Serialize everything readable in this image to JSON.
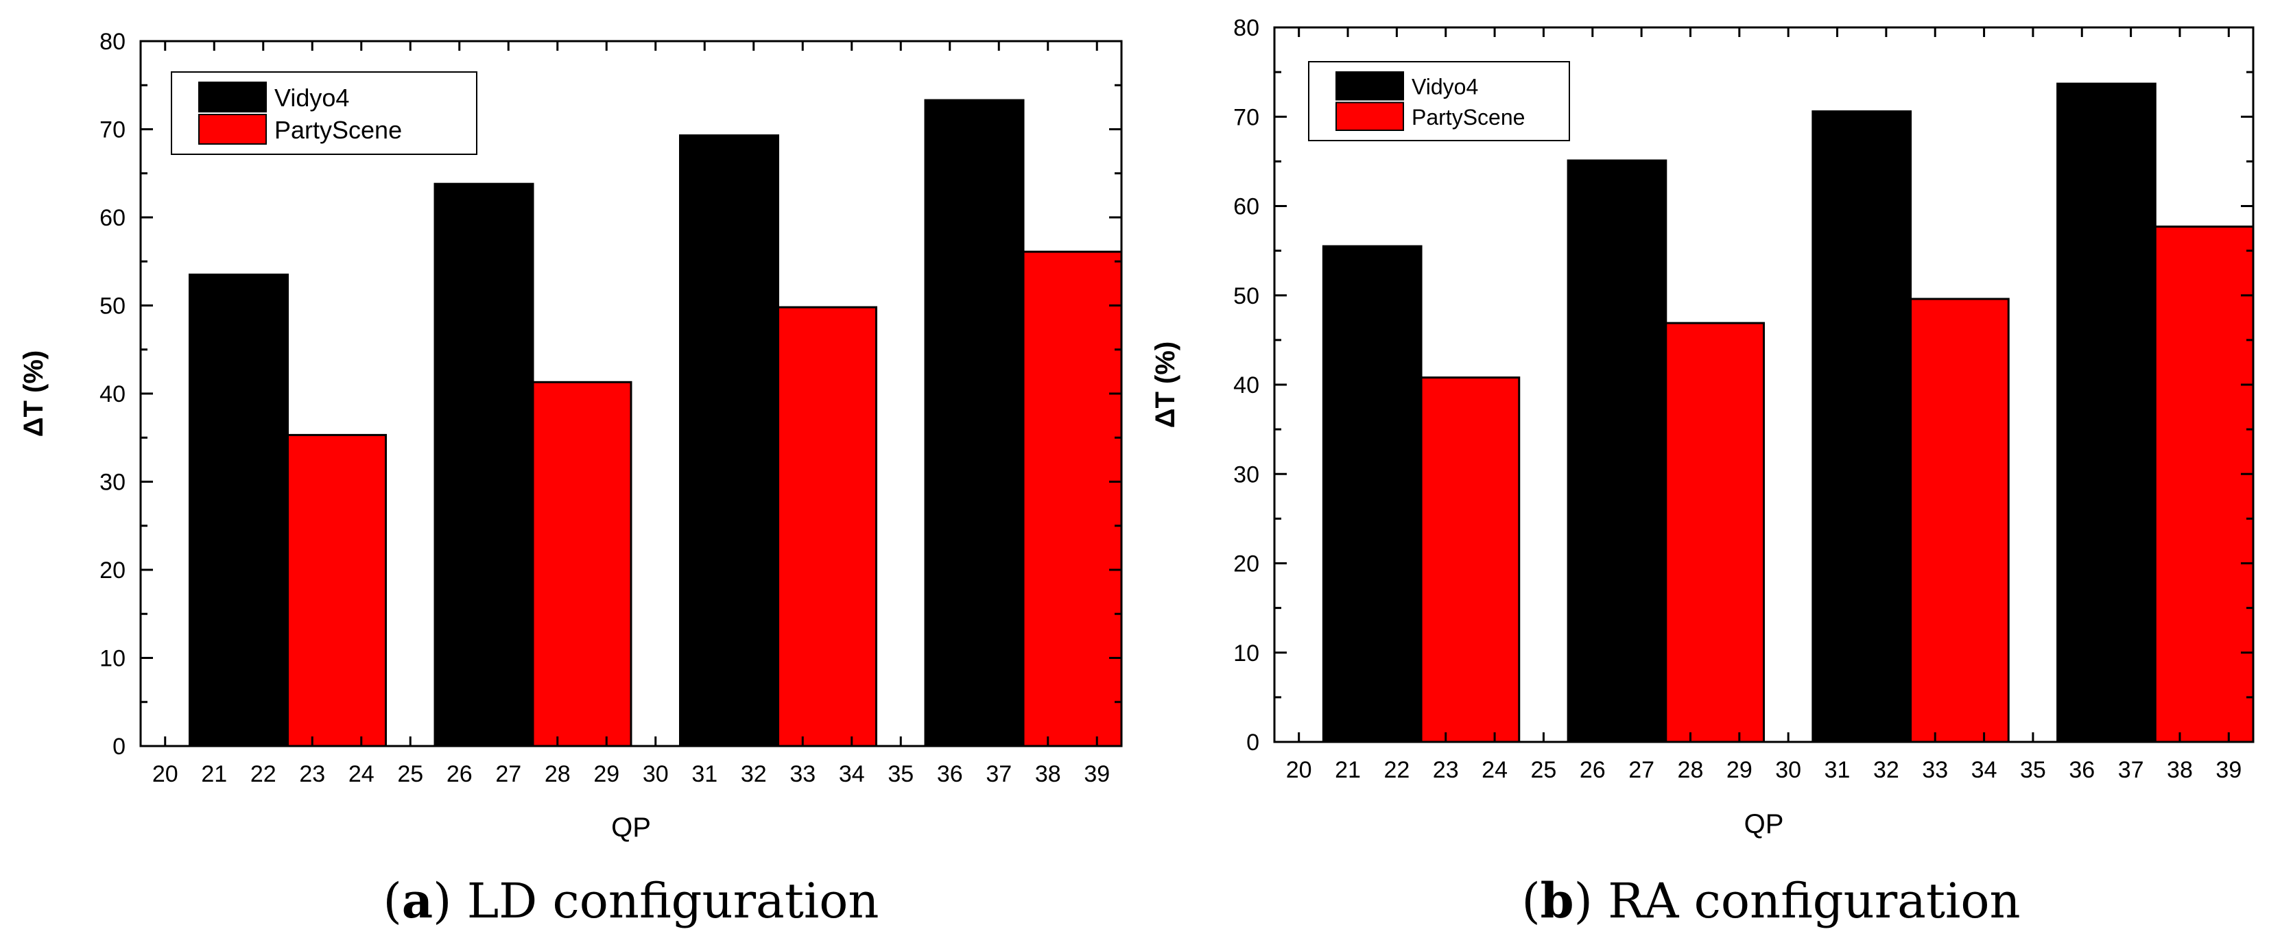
{
  "colors": {
    "vidyo4": "#000000",
    "partyscene": "#ff0000",
    "axis": "#000000",
    "background": "#ffffff"
  },
  "chart_data": [
    {
      "type": "bar",
      "caption_letter": "a",
      "caption_text": ") LD configuration",
      "caption_open": "(",
      "xlabel": "QP",
      "ylabel": "ΔT (%)",
      "ylim": [
        0,
        80
      ],
      "yticks": [
        "0",
        "10",
        "20",
        "30",
        "40",
        "50",
        "60",
        "70",
        "80"
      ],
      "xticks": [
        "20",
        "21",
        "22",
        "23",
        "24",
        "25",
        "26",
        "27",
        "28",
        "29",
        "30",
        "31",
        "32",
        "33",
        "34",
        "35",
        "36",
        "37",
        "38",
        "39"
      ],
      "legend": [
        "Vidyo4",
        "PartyScene"
      ],
      "legend_position": "top-left",
      "series": [
        {
          "name": "Vidyo4",
          "x_range": [
            [
              20.5,
              22.5
            ],
            [
              25.5,
              27.5
            ],
            [
              30.5,
              32.5
            ],
            [
              35.5,
              37.5
            ]
          ],
          "values": [
            53.5,
            63.8,
            69.3,
            73.3
          ]
        },
        {
          "name": "PartyScene",
          "x_range": [
            [
              22.5,
              24.5
            ],
            [
              27.5,
              29.5
            ],
            [
              32.5,
              34.5
            ],
            [
              37.5,
              39.5
            ]
          ],
          "values": [
            35.3,
            41.3,
            49.8,
            56.1
          ]
        }
      ]
    },
    {
      "type": "bar",
      "caption_letter": "b",
      "caption_text": ") RA configuration",
      "caption_open": "(",
      "xlabel": "QP",
      "ylabel": "ΔT (%)",
      "ylim": [
        0,
        80
      ],
      "yticks": [
        "0",
        "10",
        "20",
        "30",
        "40",
        "50",
        "60",
        "70",
        "80"
      ],
      "xticks": [
        "20",
        "21",
        "22",
        "23",
        "24",
        "25",
        "26",
        "27",
        "28",
        "29",
        "30",
        "31",
        "32",
        "33",
        "34",
        "35",
        "36",
        "37",
        "38",
        "39"
      ],
      "legend": [
        "Vidyo4",
        "PartyScene"
      ],
      "legend_position": "top-left",
      "series": [
        {
          "name": "Vidyo4",
          "x_range": [
            [
              20.5,
              22.5
            ],
            [
              25.5,
              27.5
            ],
            [
              30.5,
              32.5
            ],
            [
              35.5,
              37.5
            ]
          ],
          "values": [
            55.5,
            65.1,
            70.6,
            73.7
          ]
        },
        {
          "name": "PartyScene",
          "x_range": [
            [
              22.5,
              24.5
            ],
            [
              27.5,
              29.5
            ],
            [
              32.5,
              34.5
            ],
            [
              37.5,
              39.5
            ]
          ],
          "values": [
            40.8,
            46.9,
            49.6,
            57.7
          ]
        }
      ]
    }
  ]
}
